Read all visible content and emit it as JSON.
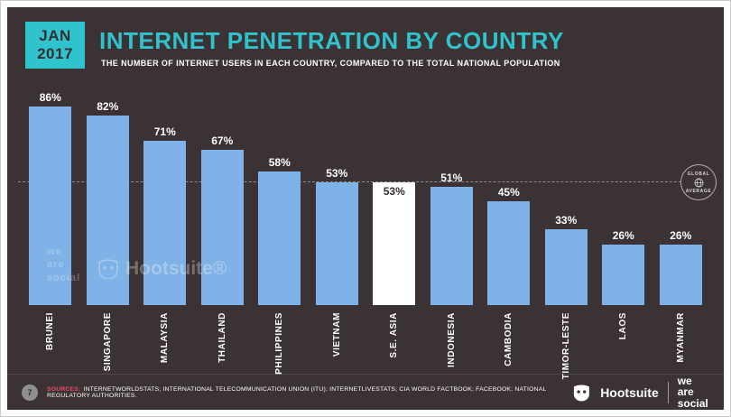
{
  "slide": {
    "date_badge": {
      "line1": "JAN",
      "line2": "2017"
    },
    "title": "INTERNET PENETRATION BY COUNTRY",
    "subtitle": "THE NUMBER OF INTERNET USERS IN EACH COUNTRY, COMPARED TO THE TOTAL NATIONAL POPULATION"
  },
  "chart_data": {
    "type": "bar",
    "title": "INTERNET PENETRATION BY COUNTRY",
    "subtitle": "THE NUMBER OF INTERNET USERS IN EACH COUNTRY, COMPARED TO THE TOTAL NATIONAL POPULATION",
    "categories": [
      "BRUNEI",
      "SINGAPORE",
      "MALAYSIA",
      "THAILAND",
      "PHILIPPINES",
      "VIETNAM",
      "S.E. ASIA",
      "INDONESIA",
      "CAMBODIA",
      "TIMOR-LESTE",
      "LAOS",
      "MYANMAR"
    ],
    "values": [
      86,
      82,
      71,
      67,
      58,
      53,
      53,
      51,
      45,
      33,
      26,
      26
    ],
    "value_labels": [
      "86%",
      "82%",
      "71%",
      "67%",
      "58%",
      "53%",
      "53%",
      "51%",
      "45%",
      "33%",
      "26%",
      "26%"
    ],
    "highlight_category": "S.E. ASIA",
    "ylim": [
      0,
      100
    ],
    "reference_line": {
      "label_top": "GLOBAL",
      "label_bottom": "AVERAGE",
      "value": 53
    },
    "bar_color": "#7fb2e6",
    "highlight_color": "#ffffff",
    "grid": "off",
    "legend": "none"
  },
  "colors": {
    "background": "#3a3233",
    "accent_cyan": "#31c3cd",
    "bar_blue": "#7fb2e6",
    "highlight_white": "#ffffff",
    "sources_pink": "#ee4b6a"
  },
  "watermarks": {
    "we_are_social_lines": [
      "we",
      "are",
      "social"
    ],
    "hootsuite": "Hootsuite®"
  },
  "footer": {
    "page_number": "7",
    "sources_label": "SOURCES:",
    "sources_text": "INTERNETWORLDSTATS; INTERNATIONAL TELECOMMUNICATION UNION (ITU); INTERNETLIVESTATS; CIA WORLD FACTBOOK; FACEBOOK; NATIONAL REGULATORY AUTHORITIES.",
    "hootsuite_label": "Hootsuite",
    "we_are_social_lines": [
      "we are",
      "social"
    ]
  }
}
